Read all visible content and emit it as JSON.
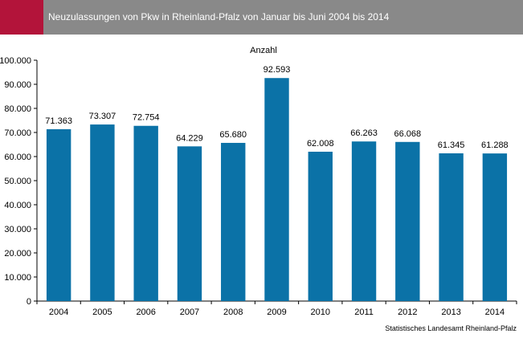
{
  "header": {
    "title": "Neuzulassungen von Pkw in Rheinland-Pfalz von Januar bis Juni 2004 bis 2014"
  },
  "colors": {
    "accent": "#b3143a",
    "header_bg": "#898989",
    "bar": "#0b72a7"
  },
  "chart_data": {
    "type": "bar",
    "title": "",
    "ylabel": "Anzahl",
    "xlabel": "",
    "categories": [
      "2004",
      "2005",
      "2006",
      "2007",
      "2008",
      "2009",
      "2010",
      "2011",
      "2012",
      "2013",
      "2014"
    ],
    "values": [
      71363,
      73307,
      72754,
      64229,
      65680,
      92593,
      62008,
      66263,
      66068,
      61345,
      61288
    ],
    "value_labels": [
      "71.363",
      "73.307",
      "72.754",
      "64.229",
      "65.680",
      "92.593",
      "62.008",
      "66.263",
      "66.068",
      "61.345",
      "61.288"
    ],
    "ylim": [
      0,
      100000
    ],
    "yticks": [
      0,
      10000,
      20000,
      30000,
      40000,
      50000,
      60000,
      70000,
      80000,
      90000,
      100000
    ],
    "ytick_labels": [
      "0",
      "10.000",
      "20.000",
      "30.000",
      "40.000",
      "50.000",
      "60.000",
      "70.000",
      "80.000",
      "90.000",
      "100.000"
    ],
    "grid": false,
    "legend": "none"
  },
  "footer": {
    "source": "Statistisches Landesamt Rheinland-Pfalz"
  }
}
